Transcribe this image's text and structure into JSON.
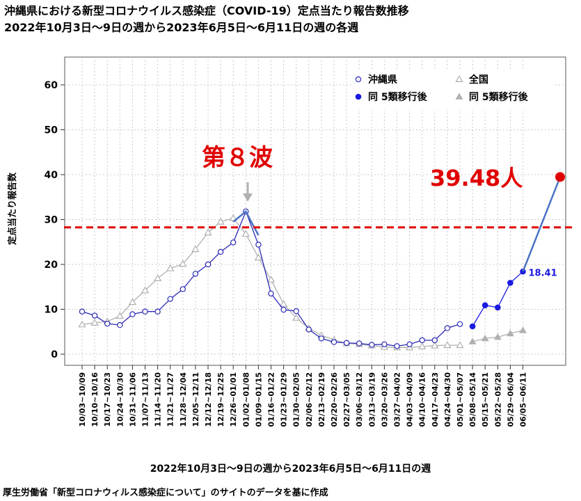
{
  "chart_data": {
    "type": "line",
    "title": "沖縄県における新型コロナウイルス感染症（COVID-19）定点当たり報告数推移",
    "subtitle": "2022年10月3日～9日の週から2023年6月5日～6月11日の週の各週",
    "xlabel": "2022年10月3日～9日の週から2023年6月5日～6月11日の週",
    "ylabel": "定点当たり報告数",
    "ylim": [
      0,
      65
    ],
    "yticks": [
      0,
      10,
      20,
      30,
      40,
      50,
      60
    ],
    "grid": true,
    "legend_position": "top-right",
    "categories": [
      "10/03~10/09",
      "10/10~10/16",
      "10/17~10/23",
      "10/24~10/30",
      "10/31~11/06",
      "11/07~11/13",
      "11/14~11/20",
      "11/21~11/27",
      "11/28~12/04",
      "12/05~12/11",
      "12/12~12/18",
      "12/19~12/25",
      "12/26~01/01",
      "01/02~01/08",
      "01/09~01/15",
      "01/16~01/22",
      "01/23~01/29",
      "01/30~02/05",
      "02/06~02/12",
      "02/13~02/19",
      "02/20~02/26",
      "02/27~03/05",
      "03/06~03/12",
      "03/13~03/19",
      "03/20~03/26",
      "03/27~04/02",
      "04/03~04/09",
      "04/10~04/16",
      "04/17~04/23",
      "04/24~04/30",
      "05/01~05/07",
      "05/08~05/14",
      "05/15~05/21",
      "05/22~05/28",
      "05/29~06/04",
      "06/05~06/11"
    ],
    "series": [
      {
        "name": "沖縄県",
        "color": "#2a2ab8",
        "marker": "open-circle",
        "values": [
          9.5,
          8.6,
          6.8,
          6.5,
          8.9,
          9.5,
          9.5,
          12.3,
          14.5,
          17.9,
          20.0,
          22.8,
          24.9,
          31.8,
          24.4,
          13.5,
          9.9,
          9.6,
          5.5,
          3.5,
          2.7,
          2.5,
          2.4,
          2.1,
          2.2,
          1.8,
          2.2,
          3.1,
          3.1,
          5.8,
          6.7,
          null,
          null,
          null,
          null,
          null
        ]
      },
      {
        "name": "同 5類移行後",
        "color": "#1a1ae0",
        "marker": "filled-circle",
        "values": [
          null,
          null,
          null,
          null,
          null,
          null,
          null,
          null,
          null,
          null,
          null,
          null,
          null,
          null,
          null,
          null,
          null,
          null,
          null,
          null,
          null,
          null,
          null,
          null,
          null,
          null,
          null,
          null,
          null,
          null,
          null,
          6.2,
          10.9,
          10.4,
          15.9,
          18.41
        ]
      },
      {
        "name": "全国",
        "color": "#b0b0b0",
        "marker": "open-triangle",
        "values": [
          6.6,
          7.0,
          7.3,
          8.5,
          11.6,
          14.2,
          16.9,
          19.1,
          20.1,
          23.4,
          27.1,
          29.5,
          30.3,
          26.8,
          21.5,
          16.6,
          11.2,
          8.1,
          5.8,
          4.2,
          3.2,
          2.4,
          2.2,
          1.9,
          1.6,
          1.5,
          1.5,
          1.7,
          1.9,
          2.0,
          2.0,
          null,
          null,
          null,
          null,
          null
        ]
      },
      {
        "name": "同 5類移行後",
        "color": "#b0b0b0",
        "marker": "filled-triangle",
        "values": [
          null,
          null,
          null,
          null,
          null,
          null,
          null,
          null,
          null,
          null,
          null,
          null,
          null,
          null,
          null,
          null,
          null,
          null,
          null,
          null,
          null,
          null,
          null,
          null,
          null,
          null,
          null,
          null,
          null,
          null,
          null,
          2.8,
          3.5,
          3.8,
          4.6,
          5.3
        ]
      }
    ],
    "annotations": {
      "wave_label": "第８波",
      "last_value_label": "18.41",
      "projection_label": "39.48人",
      "projection_value": 39.48,
      "reference_line": 29.5
    }
  }
}
